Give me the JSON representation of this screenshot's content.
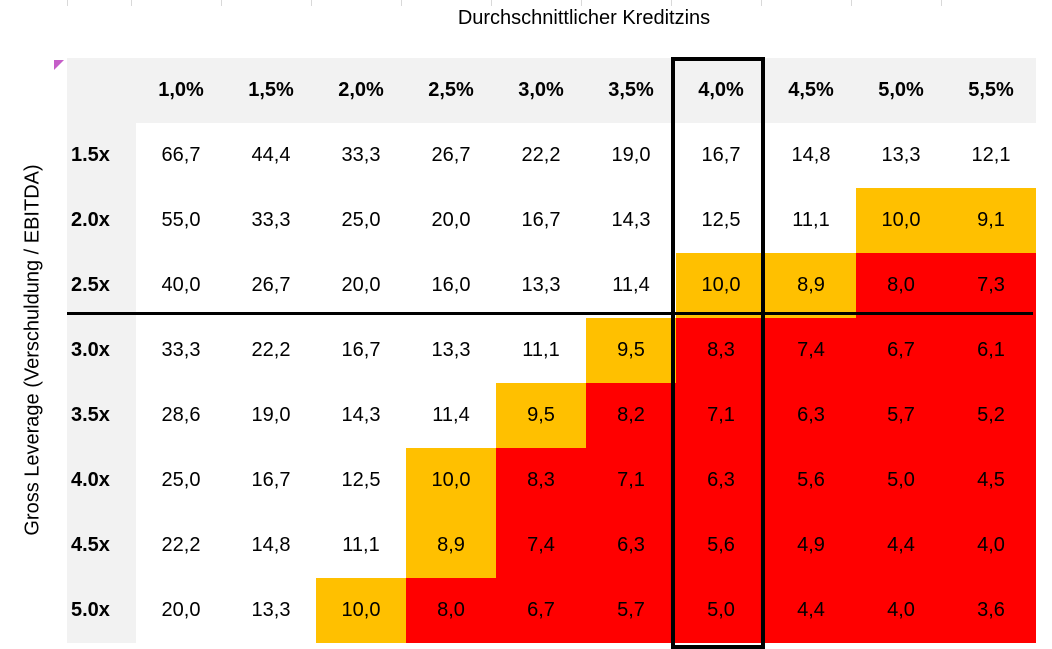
{
  "titles": {
    "top": "Durchschnittlicher Kreditzins",
    "side": "Gross Leverage (Verschuldung / EBITDA)"
  },
  "columns": [
    "1,0%",
    "1,5%",
    "2,0%",
    "2,5%",
    "3,0%",
    "3,5%",
    "4,0%",
    "4,5%",
    "5,0%",
    "5,5%"
  ],
  "rows": [
    {
      "label": "1.5x",
      "values": [
        "66,7",
        "44,4",
        "33,3",
        "26,7",
        "22,2",
        "19,0",
        "16,7",
        "14,8",
        "13,3",
        "12,1"
      ]
    },
    {
      "label": "2.0x",
      "values": [
        "55,0",
        "33,3",
        "25,0",
        "20,0",
        "16,7",
        "14,3",
        "12,5",
        "11,1",
        "10,0",
        "9,1"
      ]
    },
    {
      "label": "2.5x",
      "values": [
        "40,0",
        "26,7",
        "20,0",
        "16,0",
        "13,3",
        "11,4",
        "10,0",
        "8,9",
        "8,0",
        "7,3"
      ]
    },
    {
      "label": "3.0x",
      "values": [
        "33,3",
        "22,2",
        "16,7",
        "13,3",
        "11,1",
        "9,5",
        "8,3",
        "7,4",
        "6,7",
        "6,1"
      ]
    },
    {
      "label": "3.5x",
      "values": [
        "28,6",
        "19,0",
        "14,3",
        "11,4",
        "9,5",
        "8,2",
        "7,1",
        "6,3",
        "5,7",
        "5,2"
      ]
    },
    {
      "label": "4.0x",
      "values": [
        "25,0",
        "16,7",
        "12,5",
        "10,0",
        "8,3",
        "7,1",
        "6,3",
        "5,6",
        "5,0",
        "4,5"
      ]
    },
    {
      "label": "4.5x",
      "values": [
        "22,2",
        "14,8",
        "11,1",
        "8,9",
        "7,4",
        "6,3",
        "5,6",
        "4,9",
        "4,4",
        "4,0"
      ]
    },
    {
      "label": "5.0x",
      "values": [
        "20,0",
        "13,3",
        "10,0",
        "8,0",
        "6,7",
        "5,7",
        "5,0",
        "4,4",
        "4,0",
        "3,6"
      ]
    }
  ],
  "colors": {
    "white": "#ffffff",
    "yellow": "#ffc000",
    "red": "#ff0000",
    "header_bg": "#f2f2f2"
  }
}
